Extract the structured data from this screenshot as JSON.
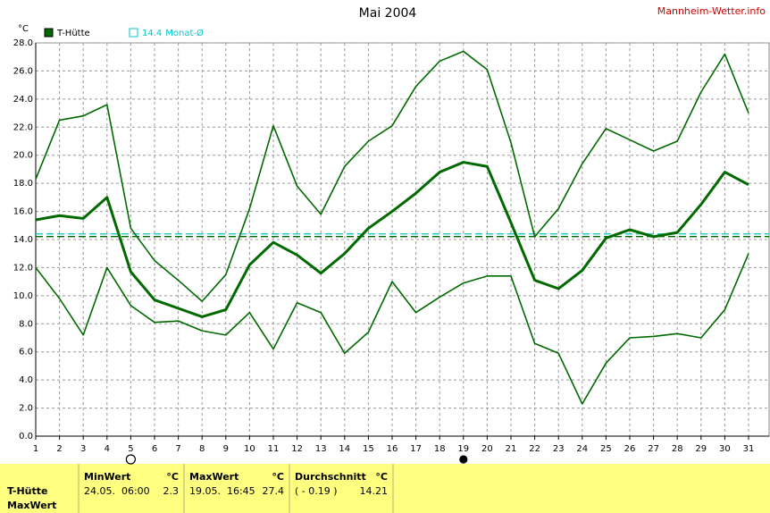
{
  "chart_data": {
    "type": "line",
    "title": "Mai 2004",
    "source": "Mannheim-Wetter.info",
    "y_unit": "°C",
    "x": [
      1,
      2,
      3,
      4,
      5,
      6,
      7,
      8,
      9,
      10,
      11,
      12,
      13,
      14,
      15,
      16,
      17,
      18,
      19,
      20,
      21,
      22,
      23,
      24,
      25,
      26,
      27,
      28,
      29,
      30,
      31
    ],
    "series": [
      {
        "name": "T-Hütte",
        "color": "#006a00",
        "values": [
          15.4,
          15.7,
          15.5,
          17.0,
          11.7,
          9.7,
          9.1,
          8.5,
          9.0,
          12.2,
          13.8,
          12.9,
          11.6,
          13.0,
          14.8,
          16.0,
          17.3,
          18.8,
          19.5,
          19.2,
          15.2,
          11.1,
          10.5,
          11.8,
          14.1,
          14.7,
          14.2,
          14.5,
          16.5,
          18.8,
          17.9
        ],
        "max": [
          18.3,
          22.5,
          22.8,
          23.6,
          14.8,
          12.5,
          11.1,
          9.6,
          11.5,
          16.2,
          22.1,
          17.8,
          15.8,
          19.2,
          21.0,
          22.1,
          24.9,
          26.7,
          27.4,
          26.1,
          20.9,
          14.2,
          16.2,
          19.4,
          21.9,
          21.1,
          20.3,
          21.0,
          24.5,
          27.2,
          23.0
        ],
        "min": [
          12.0,
          9.8,
          7.2,
          12.0,
          9.3,
          8.1,
          8.2,
          7.5,
          7.2,
          8.8,
          6.2,
          9.5,
          8.8,
          5.9,
          7.4,
          11.0,
          8.8,
          9.9,
          10.9,
          11.4,
          11.4,
          6.6,
          5.9,
          2.3,
          5.2,
          7.0,
          7.1,
          7.3,
          7.0,
          9.0,
          13.0
        ]
      }
    ],
    "reference_lines": [
      {
        "value": 14.4,
        "label": "Monat-Ø",
        "color": "#00c8c8"
      },
      {
        "value": 14.21,
        "color": "#006a00"
      }
    ],
    "moon_markers": [
      {
        "x": 5,
        "filled": false
      },
      {
        "x": 19,
        "filled": true
      }
    ],
    "xlim": [
      1,
      31
    ],
    "xticks": [
      1,
      2,
      3,
      4,
      5,
      6,
      7,
      8,
      9,
      10,
      11,
      12,
      13,
      14,
      15,
      16,
      17,
      18,
      19,
      20,
      21,
      22,
      23,
      24,
      25,
      26,
      27,
      28,
      29,
      30,
      31
    ],
    "ylim": [
      0,
      28
    ],
    "yticks": [
      {
        "value": 0,
        "label": "0.0"
      },
      {
        "value": 2,
        "label": "2.0"
      },
      {
        "value": 4,
        "label": "4.0"
      },
      {
        "value": 6,
        "label": "6.0"
      },
      {
        "value": 8,
        "label": "8.0"
      },
      {
        "value": 10,
        "label": "10.0"
      },
      {
        "value": 12,
        "label": "12.0"
      },
      {
        "value": 14,
        "label": "14.0"
      },
      {
        "value": 16,
        "label": "16.0"
      },
      {
        "value": 18,
        "label": "18.0"
      },
      {
        "value": 20,
        "label": "20.0"
      },
      {
        "value": 22,
        "label": "22.0"
      },
      {
        "value": 24,
        "label": "24.0"
      },
      {
        "value": 26,
        "label": "26.0"
      },
      {
        "value": 28,
        "label": "28.0"
      }
    ],
    "grid": true
  },
  "table": {
    "row_labels": [
      "T-Hütte",
      "MaxWert"
    ],
    "columns": [
      {
        "header": "MinWert",
        "unit": "°C",
        "time": "24.05.  06:00",
        "value": "2.3"
      },
      {
        "header": "MaxWert",
        "unit": "°C",
        "time": "19.05.  16:45",
        "value": "27.4"
      },
      {
        "header": "Durchschnitt",
        "unit": "°C",
        "time": "( - 0.19 )",
        "value": "14.21"
      }
    ]
  }
}
